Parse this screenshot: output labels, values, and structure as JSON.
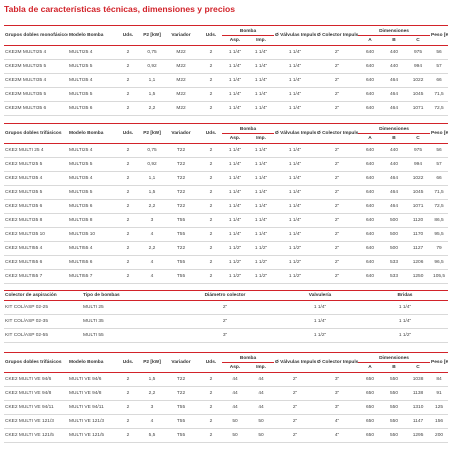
{
  "title": "Tabla de características técnicas, dimensiones y precios",
  "tables": [
    {
      "headers": {
        "grupos": "Grupos dobles monofásicos",
        "modelo": "Modelo Bomba",
        "uds": "Uds.",
        "p2": "P2 [kW]",
        "variador": "Variador",
        "uds2": "Uds.",
        "bomba": "Bomba",
        "asp": "Asp.",
        "imp": "Imp.",
        "valvulas": "Ø Válvulas Impulsión",
        "colector": "Ø Colector Impulsión",
        "dimensiones": "Dimensiones",
        "a": "A",
        "b": "B",
        "c": "C",
        "peso": "Peso [Kg]"
      },
      "rows": [
        [
          "CKE2M MULTI25 4",
          "MULTI25 4",
          "2",
          "0,75",
          "M22",
          "2",
          "1 1/4\"",
          "1 1/4\"",
          "1 1/4\"",
          "2\"",
          "640",
          "440",
          "975",
          "56"
        ],
        [
          "CKE2M MULTI25 5",
          "MULTI25 5",
          "2",
          "0,92",
          "M22",
          "2",
          "1 1/4\"",
          "1 1/4\"",
          "1 1/4\"",
          "2\"",
          "640",
          "440",
          "994",
          "57"
        ],
        [
          "CKE2M MULTI35 4",
          "MULTI35 4",
          "2",
          "1,1",
          "M22",
          "2",
          "1 1/4\"",
          "1 1/4\"",
          "1 1/4\"",
          "2\"",
          "640",
          "464",
          "1022",
          "66"
        ],
        [
          "CKE2M MULTI35 5",
          "MULTI35 5",
          "2",
          "1,5",
          "M22",
          "2",
          "1 1/4\"",
          "1 1/4\"",
          "1 1/4\"",
          "2\"",
          "640",
          "464",
          "1045",
          "71,5"
        ],
        [
          "CKE2M MULTI35 6",
          "MULTI35 6",
          "2",
          "2,2",
          "M22",
          "2",
          "1 1/4\"",
          "1 1/4\"",
          "1 1/4\"",
          "2\"",
          "640",
          "464",
          "1071",
          "72,5"
        ]
      ]
    },
    {
      "headers": {
        "grupos": "Grupos dobles trifásicos",
        "modelo": "Modelo Bomba",
        "uds": "Uds.",
        "p2": "P2 [kW]",
        "variador": "Variador",
        "uds2": "Uds.",
        "bomba": "Bomba",
        "asp": "Asp.",
        "imp": "Imp.",
        "valvulas": "Ø Válvulas Impulsión",
        "colector": "Ø Colector Impulsión",
        "dimensiones": "Dimensiones",
        "a": "A",
        "b": "B",
        "c": "C",
        "peso": "Peso [Kg]"
      },
      "rows": [
        [
          "CKE2 MULTI 25 4",
          "MULTI25 4",
          "2",
          "0,75",
          "T22",
          "2",
          "1 1/4\"",
          "1 1/4\"",
          "1 1/4\"",
          "2\"",
          "640",
          "440",
          "975",
          "56"
        ],
        [
          "CKE2 MULTI25 5",
          "MULTI25 5",
          "2",
          "0,92",
          "T22",
          "2",
          "1 1/4\"",
          "1 1/4\"",
          "1 1/4\"",
          "2\"",
          "640",
          "440",
          "994",
          "57"
        ],
        [
          "CKE2 MULTI35 4",
          "MULTI35 4",
          "2",
          "1,1",
          "T22",
          "2",
          "1 1/4\"",
          "1 1/4\"",
          "1 1/4\"",
          "2\"",
          "640",
          "464",
          "1022",
          "66"
        ],
        [
          "CKE2 MULTI35 5",
          "MULTI35 5",
          "2",
          "1,5",
          "T22",
          "2",
          "1 1/4\"",
          "1 1/4\"",
          "1 1/4\"",
          "2\"",
          "640",
          "464",
          "1045",
          "71,5"
        ],
        [
          "CKE2 MULTI35 6",
          "MULTI35 6",
          "2",
          "2,2",
          "T22",
          "2",
          "1 1/4\"",
          "1 1/4\"",
          "1 1/4\"",
          "2\"",
          "640",
          "464",
          "1071",
          "72,5"
        ],
        [
          "CKE2 MULTI35 8",
          "MULTI35 8",
          "2",
          "3",
          "T55",
          "2",
          "1 1/4\"",
          "1 1/4\"",
          "1 1/4\"",
          "2\"",
          "640",
          "500",
          "1120",
          "86,5"
        ],
        [
          "CKE2 MULTI35 10",
          "MULTI35 10",
          "2",
          "4",
          "T55",
          "2",
          "1 1/4\"",
          "1 1/4\"",
          "1 1/4\"",
          "2\"",
          "640",
          "500",
          "1170",
          "95,5"
        ],
        [
          "CKE2 MULTI55 4",
          "MULTI55 4",
          "2",
          "2,2",
          "T22",
          "2",
          "1 1/2\"",
          "1 1/2\"",
          "1 1/2\"",
          "2\"",
          "640",
          "500",
          "1127",
          "79"
        ],
        [
          "CKE2 MULTI55 6",
          "MULTI55 6",
          "2",
          "4",
          "T55",
          "2",
          "1 1/2\"",
          "1 1/2\"",
          "1 1/2\"",
          "2\"",
          "640",
          "533",
          "1206",
          "96,5"
        ],
        [
          "CKE2 MULTI55 7",
          "MULTI55 7",
          "2",
          "4",
          "T55",
          "2",
          "1 1/2\"",
          "1 1/2\"",
          "1 1/2\"",
          "2\"",
          "640",
          "533",
          "1250",
          "105,5"
        ]
      ]
    },
    {
      "headers": {
        "colector": "Colector de aspiración",
        "tipo": "Tipo de bombas",
        "diametro": "Diámetro colector",
        "valvuleria": "Valvulería",
        "bridas": "Bridas"
      },
      "rows": [
        [
          "KIT COL/ASP 02-25",
          "MULTI 25",
          "2\"",
          "1 1/4\"",
          "1 1/4\""
        ],
        [
          "KIT COL/ASP 02-35",
          "MULTI 35",
          "2\"",
          "1 1/4\"",
          "1 1/4\""
        ],
        [
          "KIT COL/ASP 02-55",
          "MULTI 55",
          "3\"",
          "1 1/2\"",
          "1 1/2\""
        ]
      ]
    },
    {
      "headers": {
        "grupos": "Grupos dobles trifásicos",
        "modelo": "Modelo Bomba",
        "uds": "Uds.",
        "p2": "P2 [kW]",
        "variador": "Variador",
        "uds2": "Uds.",
        "bomba": "Bomba",
        "asp": "Asp.",
        "imp": "Imp.",
        "valvulas": "Ø Válvulas Impulsión",
        "colector": "Ø Colector Impulsión",
        "dimensiones": "Dimensiones",
        "a": "A",
        "b": "B",
        "c": "C",
        "peso": "Peso [Kg]"
      },
      "rows": [
        [
          "CKE2 MULTI VE 94/6",
          "MULTI VE 94/6",
          "2",
          "1,5",
          "T22",
          "2",
          "44",
          "44",
          "2\"",
          "3\"",
          "650",
          "550",
          "1038",
          "84"
        ],
        [
          "CKE2 MULTI VE 94/8",
          "MULTI VE 94/8",
          "2",
          "2,2",
          "T22",
          "2",
          "44",
          "44",
          "2\"",
          "3\"",
          "650",
          "550",
          "1138",
          "91"
        ],
        [
          "CKE2 MULTI VE 94/11",
          "MULTI VE 94/11",
          "2",
          "3",
          "T55",
          "2",
          "44",
          "44",
          "2\"",
          "3\"",
          "650",
          "550",
          "1310",
          "125"
        ],
        [
          "CKE2 MULTI VE 121/3",
          "MULTI VE 121/3",
          "2",
          "4",
          "T55",
          "2",
          "50",
          "50",
          "2\"",
          "4\"",
          "650",
          "550",
          "1147",
          "156"
        ],
        [
          "CKE2 MULTI VE 121/5",
          "MULTI VE 121/5",
          "2",
          "5,5",
          "T55",
          "2",
          "50",
          "50",
          "2\"",
          "4\"",
          "650",
          "550",
          "1295",
          "200"
        ]
      ]
    }
  ]
}
